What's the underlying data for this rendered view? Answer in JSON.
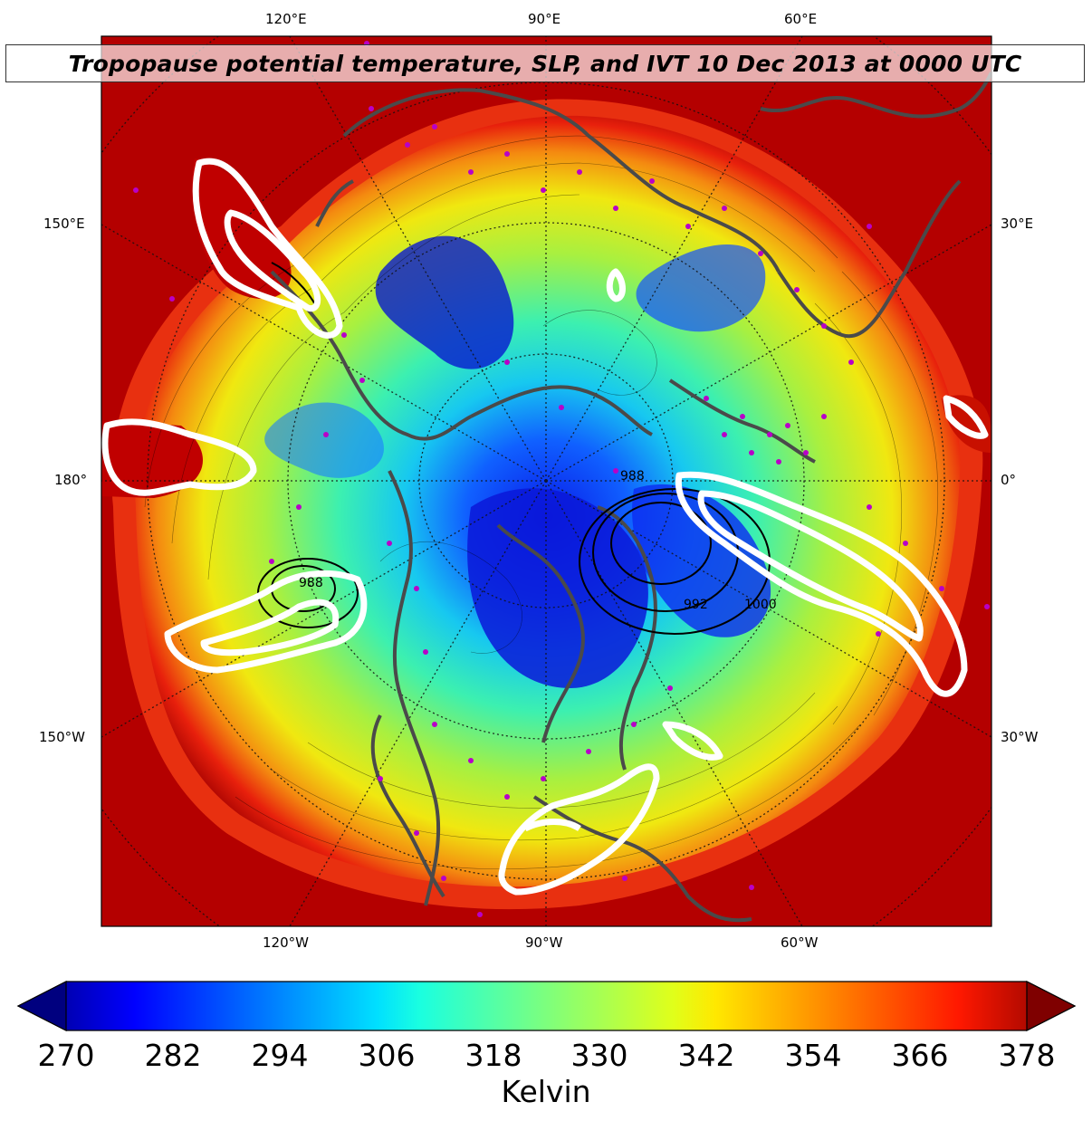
{
  "title": "Tropopause potential temperature, SLP, and IVT 10 Dec 2013 at 0000 UTC",
  "map": {
    "projection": "north-polar-stereographic",
    "top_lon_labels": [
      "120°E",
      "90°E",
      "60°E"
    ],
    "bottom_lon_labels": [
      "120°W",
      "90°W",
      "60°W"
    ],
    "left_labels": [
      "150°E",
      "180°",
      "150°W"
    ],
    "right_labels": [
      "30°E",
      "0°",
      "30°W"
    ],
    "fill_field": "tropopause potential temperature",
    "contours": {
      "slp_labels": [
        "988",
        "992",
        "1000",
        "988"
      ],
      "slp_color": "#000000",
      "ivt_color": "#ffffff",
      "coastline_color": "#4a4a4a",
      "station_marker_color": "#b800c8"
    }
  },
  "colorbar": {
    "colormap": "jet",
    "ticks": [
      "270",
      "282",
      "294",
      "306",
      "318",
      "330",
      "342",
      "354",
      "366",
      "378"
    ],
    "min": 270,
    "max": 378,
    "extend": "both",
    "unit": "Kelvin"
  }
}
